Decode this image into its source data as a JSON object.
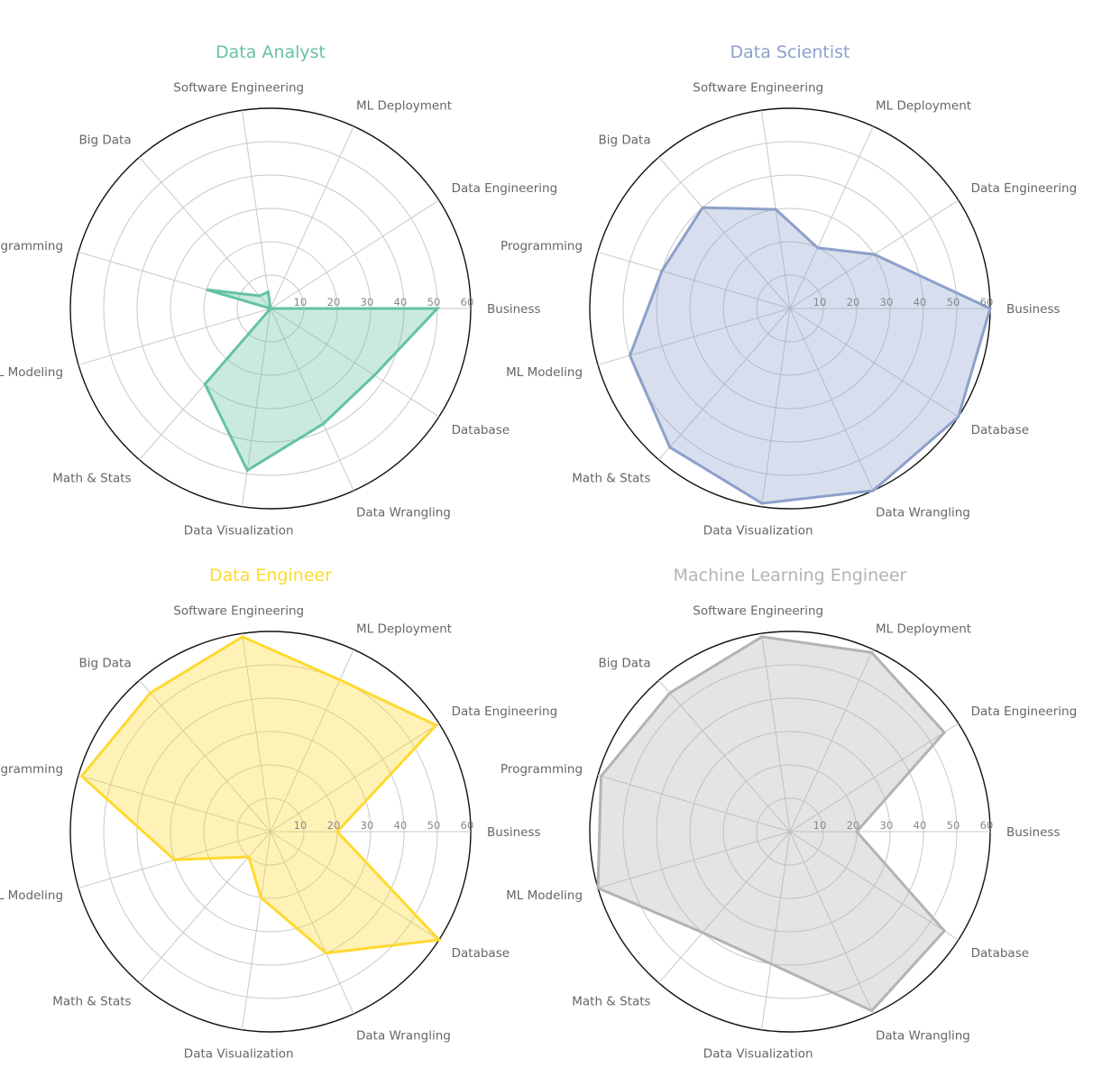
{
  "chart_data": [
    {
      "type": "radar",
      "title": "Data Analyst",
      "color": "#66c2a5",
      "axes": [
        "Business",
        "Data Engineering",
        "ML Deployment",
        "Software Engineering",
        "Big Data",
        "Programming",
        "ML Modeling",
        "Math & Stats",
        "Data Visualization",
        "Data Wrangling",
        "Database"
      ],
      "values": [
        50,
        0,
        0,
        5,
        5,
        20,
        0,
        30,
        49,
        38,
        37
      ],
      "rticks": [
        10,
        20,
        30,
        40,
        50,
        60
      ],
      "rlim": [
        0,
        60
      ],
      "grid": true
    },
    {
      "type": "radar",
      "title": "Data Scientist",
      "color": "#8da0cb",
      "axes": [
        "Business",
        "Data Engineering",
        "ML Deployment",
        "Software Engineering",
        "Big Data",
        "Programming",
        "ML Modeling",
        "Math & Stats",
        "Data Visualization",
        "Data Wrangling",
        "Database"
      ],
      "values": [
        60,
        30,
        20,
        30,
        40,
        40,
        50,
        55,
        59,
        60,
        60
      ],
      "rticks": [
        10,
        20,
        30,
        40,
        50,
        60
      ],
      "rlim": [
        0,
        60
      ],
      "grid": true
    },
    {
      "type": "radar",
      "title": "Data Engineer",
      "color": "#ffd92f",
      "axes": [
        "Business",
        "Data Engineering",
        "ML Deployment",
        "Software Engineering",
        "Big Data",
        "Programming",
        "ML Modeling",
        "Math & Stats",
        "Data Visualization",
        "Data Wrangling",
        "Database"
      ],
      "values": [
        20,
        59,
        50,
        59,
        55,
        59,
        30,
        10,
        20,
        40,
        60
      ],
      "rticks": [
        10,
        20,
        30,
        40,
        50,
        60
      ],
      "rlim": [
        0,
        60
      ],
      "grid": true
    },
    {
      "type": "radar",
      "title": "Machine Learning Engineer",
      "color": "#b3b3b3",
      "axes": [
        "Business",
        "Data Engineering",
        "ML Deployment",
        "Software Engineering",
        "Big Data",
        "Programming",
        "ML Modeling",
        "Math & Stats",
        "Data Visualization",
        "Data Wrangling",
        "Database"
      ],
      "values": [
        20,
        55,
        59,
        59,
        55,
        59,
        60,
        40,
        40,
        59,
        55
      ],
      "rticks": [
        10,
        20,
        30,
        40,
        50,
        60
      ],
      "rlim": [
        0,
        60
      ],
      "grid": true
    }
  ]
}
